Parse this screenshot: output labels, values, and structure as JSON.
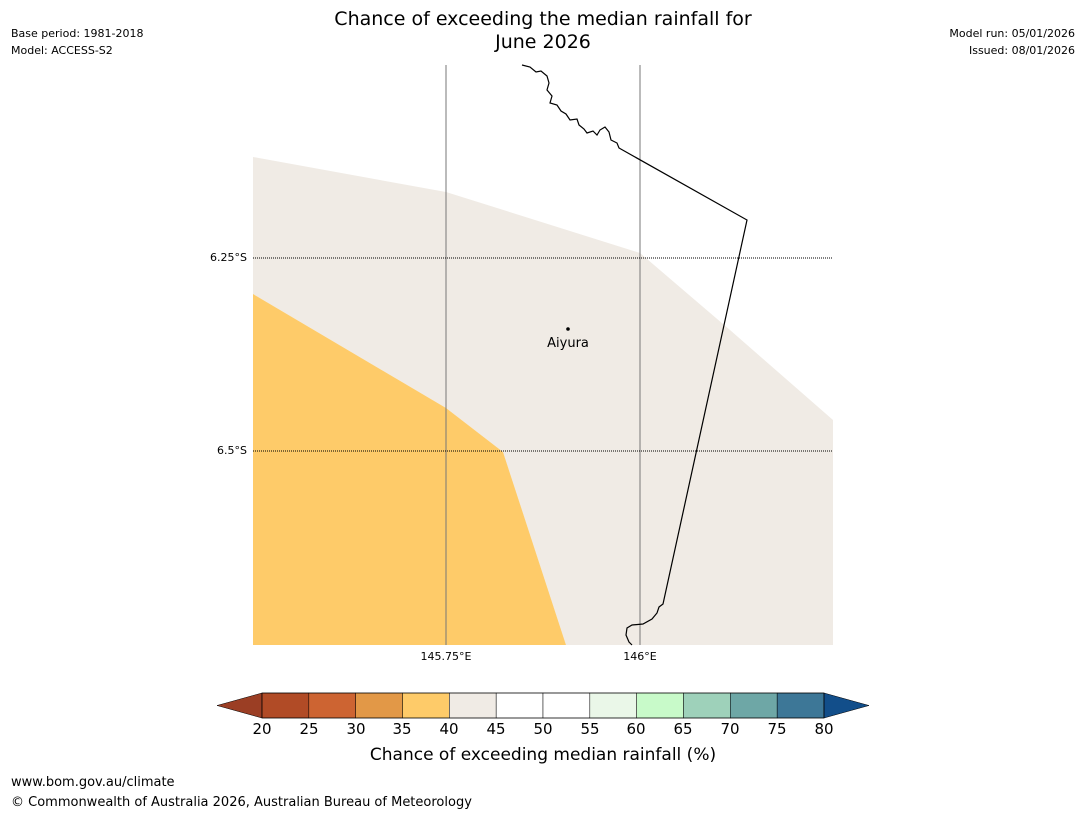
{
  "header": {
    "base_period": "Base period: 1981-2018",
    "model": "Model: ACCESS-S2",
    "title_line1": "Chance of exceeding the median rainfall for",
    "title_line2": "June 2026",
    "model_run": "Model run: 05/01/2026",
    "issued": "Issued: 08/01/2026"
  },
  "map": {
    "lat_labels": [
      "6.25°S",
      "6.5°S"
    ],
    "lon_labels": [
      "145.75°E",
      "146°E"
    ],
    "place": {
      "name": "Aiyura",
      "lat": -6.34,
      "lon": 145.9
    },
    "region_fill_colors": {
      "35_40": "#fecb69",
      "40_45": "#f0ebe5"
    }
  },
  "colorbar": {
    "title": "Chance of exceeding median rainfall (%)",
    "ticks": [
      "20",
      "25",
      "30",
      "35",
      "40",
      "45",
      "50",
      "55",
      "60",
      "65",
      "70",
      "75",
      "80"
    ],
    "under_color": "#9b3e24",
    "over_color": "#124e8a",
    "colors": [
      "#b14b26",
      "#cd6432",
      "#e29847",
      "#fecb69",
      "#f0ebe5",
      "#ffffff",
      "#ffffff",
      "#eaf7e8",
      "#c8fac9",
      "#9ed1ba",
      "#6ea7a6",
      "#3d7797"
    ]
  },
  "footer": {
    "url": "www.bom.gov.au/climate",
    "copyright": "© Commonwealth of Australia 2026, Australian Bureau of Meteorology"
  }
}
